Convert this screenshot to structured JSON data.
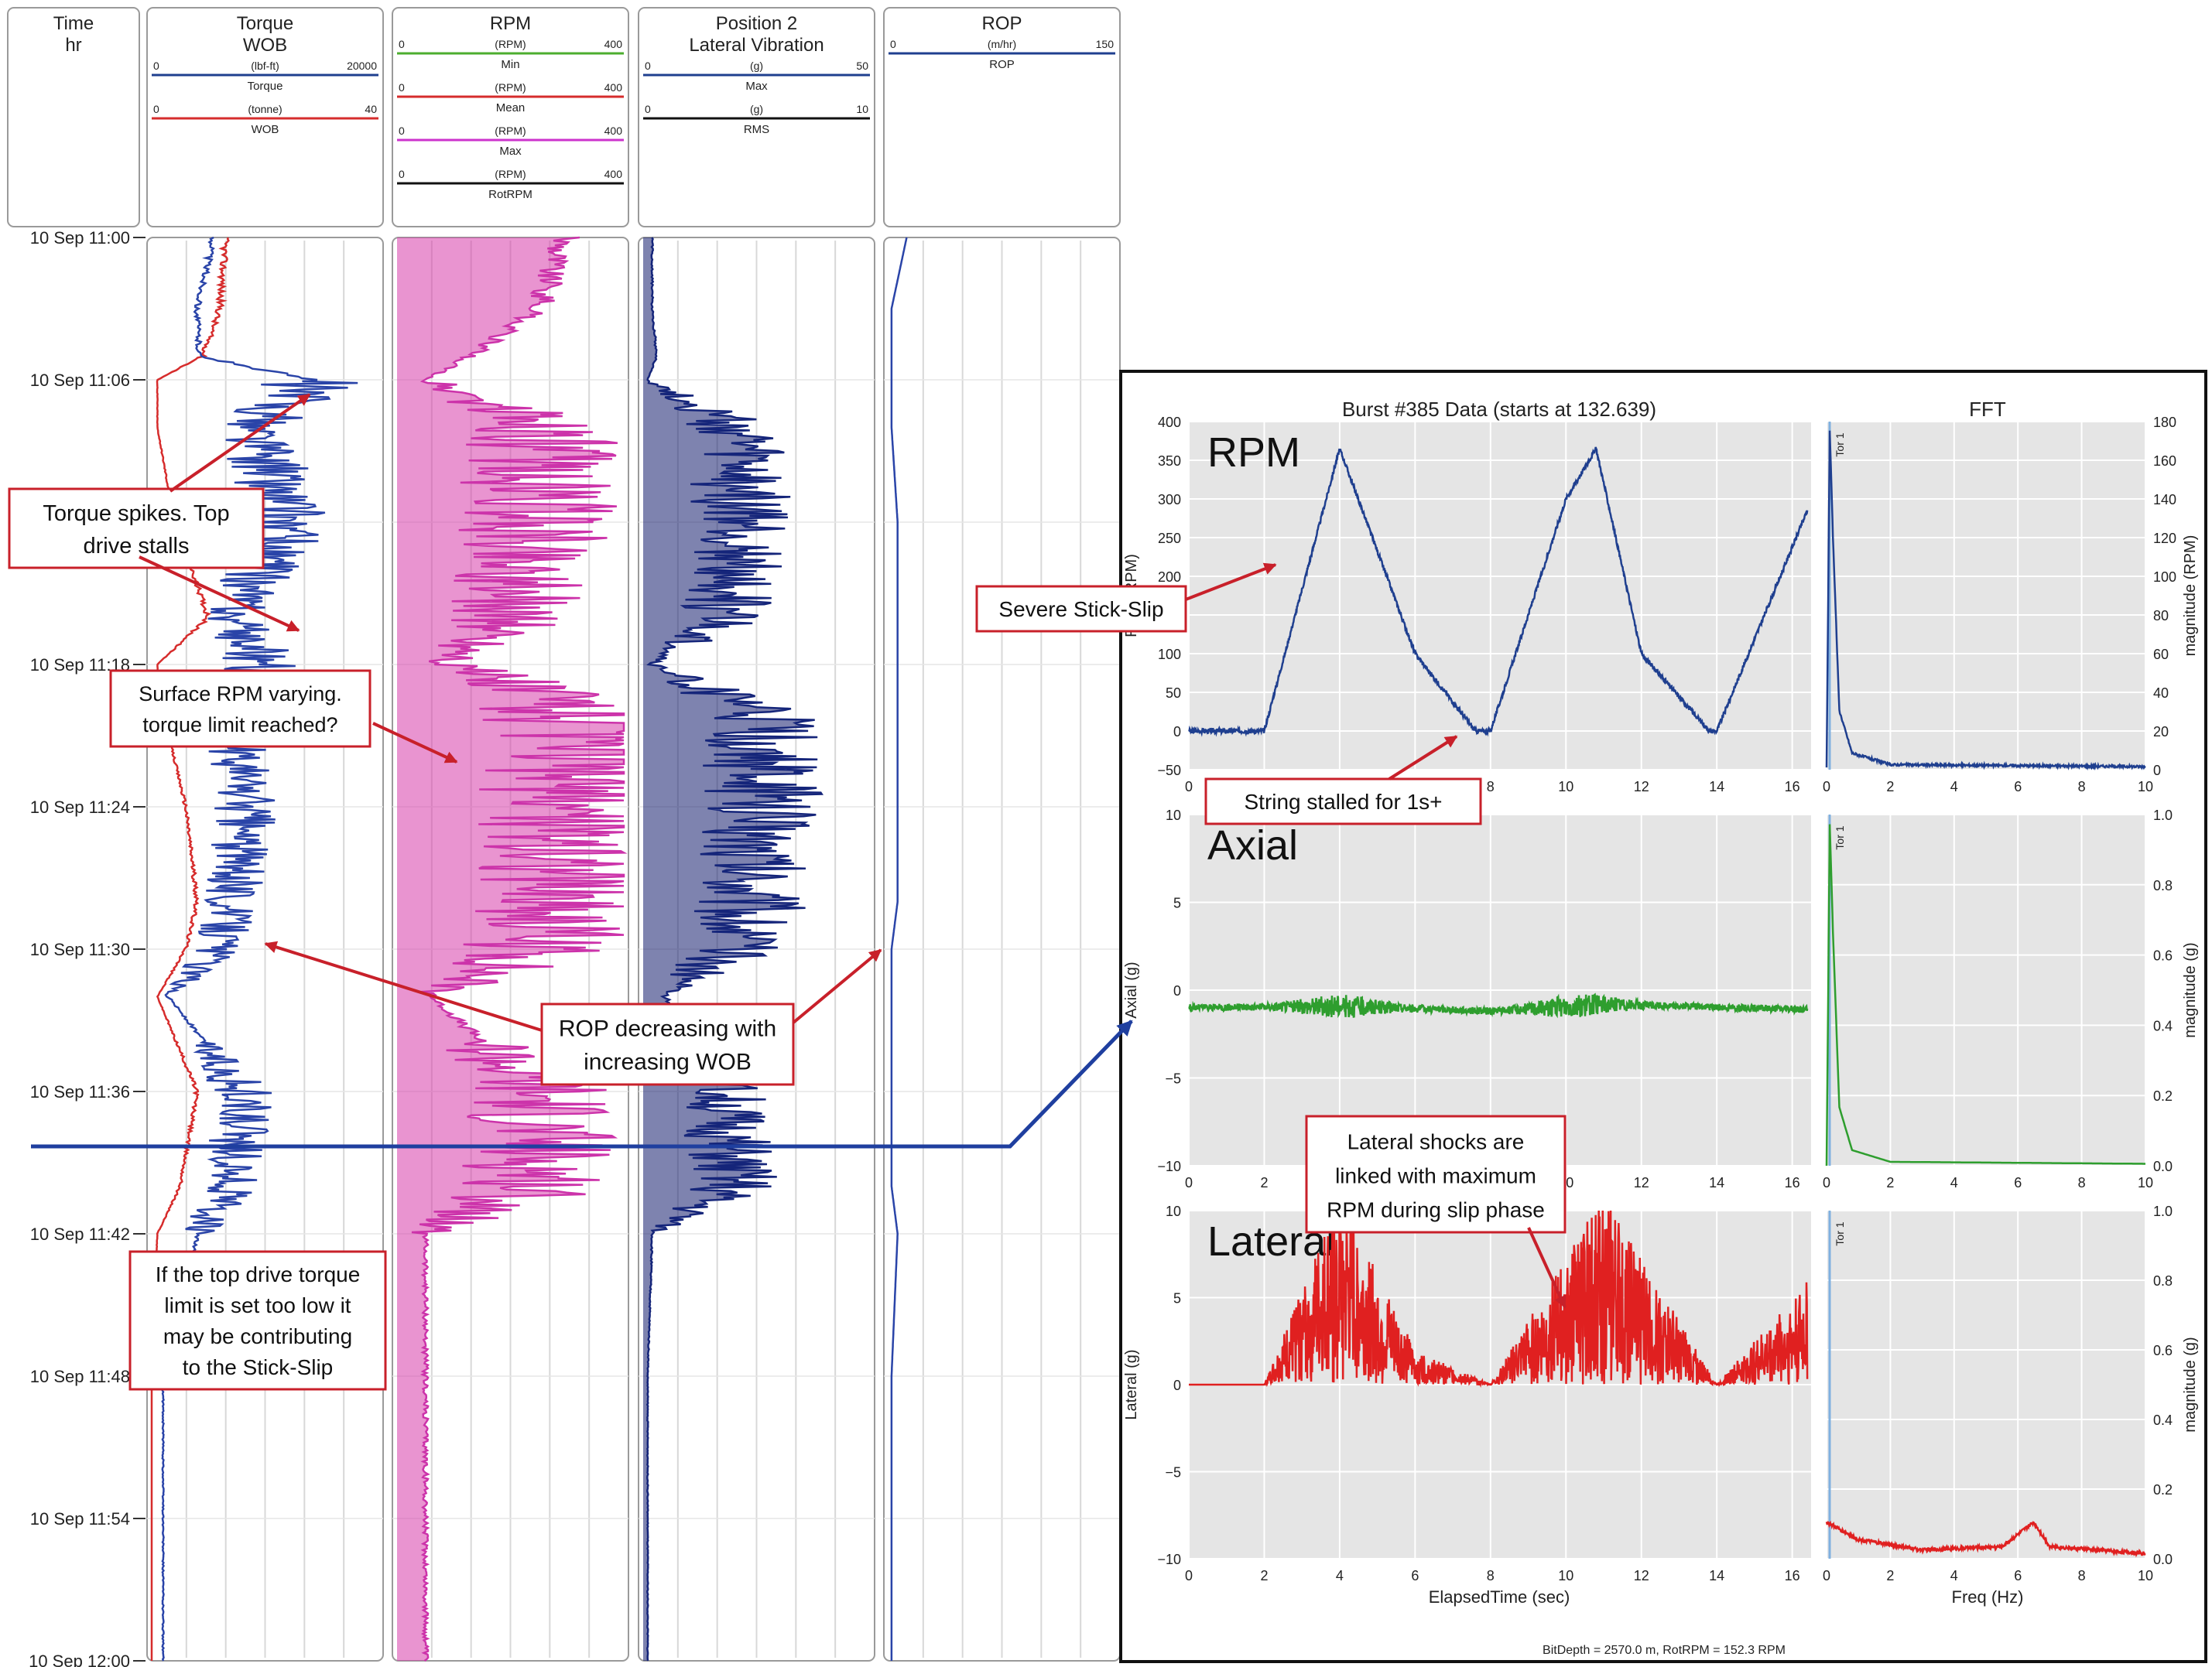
{
  "log": {
    "tracks": [
      {
        "key": "time",
        "title": [
          "Time",
          "hr"
        ],
        "scales": []
      },
      {
        "key": "torque",
        "title": [
          "Torque",
          "WOB"
        ],
        "scales": [
          {
            "min": "0",
            "unit": "(lbf-ft)",
            "max": "20000",
            "name": "Torque",
            "color": "#1f3f8f"
          },
          {
            "min": "0",
            "unit": "(tonne)",
            "max": "40",
            "name": "WOB",
            "color": "#d62c2c"
          }
        ]
      },
      {
        "key": "rpm",
        "title": [
          "RPM"
        ],
        "scales": [
          {
            "min": "0",
            "unit": "(RPM)",
            "max": "400",
            "name": "Min",
            "color": "#4cae2f"
          },
          {
            "min": "0",
            "unit": "(RPM)",
            "max": "400",
            "name": "Mean",
            "color": "#d62c2c"
          },
          {
            "min": "0",
            "unit": "(RPM)",
            "max": "400",
            "name": "Max",
            "color": "#cc33cc"
          },
          {
            "min": "0",
            "unit": "(RPM)",
            "max": "400",
            "name": "RotRPM",
            "color": "#111111"
          }
        ]
      },
      {
        "key": "vib",
        "title": [
          "Position 2",
          "Lateral Vibration"
        ],
        "scales": [
          {
            "min": "0",
            "unit": "(g)",
            "max": "50",
            "name": "Max",
            "color": "#1f3f8f"
          },
          {
            "min": "0",
            "unit": "(g)",
            "max": "10",
            "name": "RMS",
            "color": "#111111"
          }
        ]
      },
      {
        "key": "rop",
        "title": [
          "ROP"
        ],
        "scales": [
          {
            "min": "0",
            "unit": "(m/hr)",
            "max": "150",
            "name": "ROP",
            "color": "#1f3f8f"
          }
        ]
      }
    ],
    "time_labels": [
      "10 Sep 11:00",
      "10 Sep 11:06",
      "10 Sep 11:12",
      "10 Sep 11:18",
      "10 Sep 11:24",
      "10 Sep 11:30",
      "10 Sep 11:36",
      "10 Sep 11:42",
      "10 Sep 11:48",
      "10 Sep 11:54",
      "10 Sep 12:00"
    ]
  },
  "annotations": {
    "torque_spikes": [
      "Torque spikes. Top",
      "drive stalls"
    ],
    "surface_rpm": [
      "Surface RPM varying.",
      "torque limit reached?"
    ],
    "rop_decreasing": [
      "ROP decreasing with",
      "increasing WOB"
    ],
    "top_drive": [
      "If the top drive torque",
      "limit is set too low it",
      "may be contributing",
      "to the Stick-Slip"
    ],
    "severe": [
      "Severe Stick-Slip"
    ],
    "stalled": [
      "String stalled for 1s+"
    ],
    "lateral_shocks": [
      "Lateral shocks are",
      "linked with maximum",
      "RPM during slip phase"
    ]
  },
  "burst": {
    "title": "Burst #385 Data (starts at 132.639)",
    "fft_title": "FFT",
    "footer": "BitDepth = 2570.0 m, RotRPM = 152.3 RPM",
    "xlabel_time": "ElapsedTime (sec)",
    "xlabel_freq": "Freq (Hz)",
    "x_ticks": [
      "0",
      "2",
      "4",
      "6",
      "8",
      "10",
      "12",
      "14",
      "16"
    ],
    "f_ticks": [
      "0",
      "2",
      "4",
      "6",
      "8",
      "10"
    ],
    "fft_marker": "Tor 1",
    "panels": [
      {
        "name": "RPM",
        "ylabel": "RPM (RPM)",
        "y_ticks": [
          "400",
          "350",
          "300",
          "250",
          "200",
          "150",
          "100",
          "50",
          "0",
          "−50"
        ],
        "ylabel_right": "magnitude (RPM)",
        "yr_ticks": [
          "180",
          "160",
          "140",
          "120",
          "100",
          "80",
          "60",
          "40",
          "20",
          "0"
        ],
        "color": "#1f3f8f"
      },
      {
        "name": "Axial",
        "ylabel": "Axial (g)",
        "y_ticks": [
          "10",
          "5",
          "0",
          "−5",
          "−10"
        ],
        "ylabel_right": "magnitude (g)",
        "yr_ticks": [
          "1.0",
          "0.8",
          "0.6",
          "0.4",
          "0.2",
          "0.0"
        ],
        "color": "#2e9e2e"
      },
      {
        "name": "Lateral",
        "ylabel": "Lateral (g)",
        "y_ticks": [
          "10",
          "5",
          "0",
          "−5",
          "−10"
        ],
        "ylabel_right": "magnitude (g)",
        "yr_ticks": [
          "1.0",
          "0.8",
          "0.6",
          "0.4",
          "0.2",
          "0.0"
        ],
        "color": "#e02020"
      }
    ]
  },
  "chart_data": [
    {
      "type": "line",
      "x_unit": "time (hr)",
      "x": [
        "11:00",
        "11:03",
        "11:05",
        "11:06",
        "11:08",
        "11:12",
        "11:16",
        "11:18",
        "11:20",
        "11:24",
        "11:28",
        "11:30",
        "11:32",
        "11:36",
        "11:40",
        "11:42",
        "11:48",
        "11:54",
        "12:00"
      ],
      "series": [
        {
          "name": "Torque",
          "unit": "lbf-ft",
          "values": [
            5500,
            4000,
            4200,
            14000,
            9000,
            12000,
            7000,
            10000,
            7000,
            8500,
            7000,
            6000,
            1500,
            8000,
            7000,
            4000,
            1000,
            1000,
            1000
          ]
        },
        {
          "name": "WOB",
          "unit": "tonne",
          "values": [
            13,
            12,
            9,
            1,
            1,
            4,
            10,
            1,
            2,
            6,
            8,
            6,
            1,
            8,
            5,
            1,
            0,
            0,
            0
          ]
        },
        {
          "name": "ROP",
          "unit": "m/hr",
          "values": [
            12,
            2,
            2,
            2,
            2,
            6,
            6,
            6,
            6,
            6,
            6,
            2,
            2,
            2,
            2,
            6,
            2,
            2,
            2
          ]
        },
        {
          "name": "RPM Max",
          "unit": "RPM",
          "values": [
            300,
            250,
            130,
            50,
            250,
            250,
            200,
            100,
            340,
            320,
            300,
            250,
            60,
            250,
            250,
            50,
            50,
            50,
            50
          ]
        },
        {
          "name": "Lateral Vibration Max",
          "unit": "g",
          "values": [
            2,
            2,
            3,
            1,
            20,
            22,
            18,
            2,
            25,
            26,
            24,
            20,
            5,
            18,
            20,
            2,
            1,
            1,
            1
          ]
        }
      ]
    },
    {
      "type": "line",
      "title": "RPM",
      "x_unit": "sec",
      "series": [
        {
          "name": "RPM",
          "x": [
            0,
            2,
            4,
            6,
            7.6,
            8,
            10,
            10.8,
            12,
            13.8,
            14,
            16.4
          ],
          "values": [
            0,
            0,
            365,
            100,
            0,
            0,
            300,
            365,
            100,
            0,
            0,
            285
          ]
        }
      ],
      "xlim": [
        0,
        16.5
      ],
      "ylim": [
        -50,
        400
      ]
    },
    {
      "type": "line",
      "title": "FFT RPM",
      "x_unit": "Hz",
      "series": [
        {
          "name": "magnitude",
          "x": [
            0,
            0.1,
            0.2,
            0.4,
            0.8,
            2,
            10
          ],
          "values": [
            0,
            175,
            120,
            30,
            8,
            2,
            1
          ]
        }
      ],
      "xlim": [
        0,
        10
      ],
      "ylim": [
        0,
        180
      ]
    },
    {
      "type": "line",
      "title": "Axial",
      "x_unit": "sec",
      "series": [
        {
          "name": "Axial",
          "x": [
            0,
            4,
            8,
            11,
            16.4
          ],
          "values": [
            -1,
            -0.9,
            -1.2,
            -0.8,
            -1.1
          ]
        }
      ],
      "xlim": [
        0,
        16.5
      ],
      "ylim": [
        -10,
        10
      ]
    },
    {
      "type": "line",
      "title": "Lateral",
      "x_unit": "sec",
      "series": [
        {
          "name": "Lateral",
          "x": [
            0,
            2,
            4,
            6,
            8,
            11,
            14,
            16.4
          ],
          "values": [
            0,
            0,
            5.5,
            1,
            0,
            5.5,
            0,
            3
          ]
        }
      ],
      "xlim": [
        0,
        16.5
      ],
      "ylim": [
        -10,
        10
      ]
    },
    {
      "type": "line",
      "title": "FFT Lateral",
      "x_unit": "Hz",
      "series": [
        {
          "name": "magnitude",
          "x": [
            0,
            1,
            3,
            5.5,
            6.5,
            7,
            10
          ],
          "values": [
            0.1,
            0.05,
            0.02,
            0.03,
            0.1,
            0.03,
            0.01
          ]
        }
      ],
      "xlim": [
        0,
        10
      ],
      "ylim": [
        0,
        1
      ]
    }
  ]
}
